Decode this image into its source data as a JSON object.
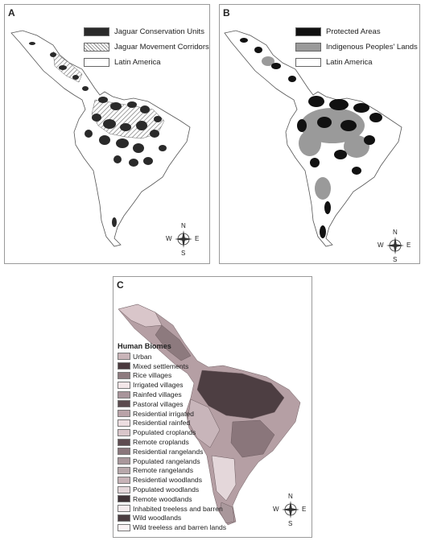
{
  "panel_a": {
    "label": "A",
    "legend": [
      {
        "label": "Jaguar Conservation Units",
        "fill": "#2a2a2a"
      },
      {
        "label": "Jaguar Movement Corridors",
        "fill": "hatch"
      },
      {
        "label": "Latin America",
        "fill": "#ffffff"
      }
    ],
    "compass": {
      "n": "N",
      "s": "S",
      "e": "E",
      "w": "W"
    }
  },
  "panel_b": {
    "label": "B",
    "legend": [
      {
        "label": "Protected Areas",
        "fill": "#111111"
      },
      {
        "label": "Indigenous Peoples' Lands",
        "fill": "#9a9a9a"
      },
      {
        "label": "Latin America",
        "fill": "#ffffff"
      }
    ],
    "compass": {
      "n": "N",
      "s": "S",
      "e": "E",
      "w": "W"
    }
  },
  "panel_c": {
    "label": "C",
    "legend_title": "Human Biomes",
    "legend": [
      {
        "label": "Urban",
        "fill": "#c9b4b8"
      },
      {
        "label": "Mixed settlements",
        "fill": "#4a3a3e"
      },
      {
        "label": "Rice villages",
        "fill": "#8d7a7e"
      },
      {
        "label": "Irrigated villages",
        "fill": "#f3e6e8"
      },
      {
        "label": "Rainfed villages",
        "fill": "#a8949a"
      },
      {
        "label": "Pastoral villages",
        "fill": "#5a4a4e"
      },
      {
        "label": "Residential irrigated",
        "fill": "#b9a3a8"
      },
      {
        "label": "Residential rainfed",
        "fill": "#ecdde0"
      },
      {
        "label": "Populated croplands",
        "fill": "#d9c6ca"
      },
      {
        "label": "Remote croplands",
        "fill": "#5e4b50"
      },
      {
        "label": "Residential rangelands",
        "fill": "#8a767b"
      },
      {
        "label": "Populated rangelands",
        "fill": "#a9979b"
      },
      {
        "label": "Remote rangelands",
        "fill": "#b8a8ab"
      },
      {
        "label": "Residential woodlands",
        "fill": "#c7b3b7"
      },
      {
        "label": "Populated woodlands",
        "fill": "#e4d7da"
      },
      {
        "label": "Remote woodlands",
        "fill": "#3e3236"
      },
      {
        "label": "Inhabited treeless and barren",
        "fill": "#f4ecee"
      },
      {
        "label": "Wild woodlands",
        "fill": "#4b3d41"
      },
      {
        "label": "Wild treeless and barren lands",
        "fill": "#fbf3f5"
      }
    ],
    "compass": {
      "n": "N",
      "s": "S",
      "e": "E",
      "w": "W"
    }
  }
}
